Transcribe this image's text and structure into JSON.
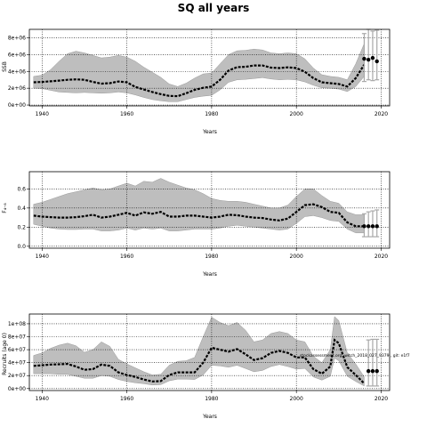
{
  "figure_title": "SQ all years",
  "colors": {
    "band": "#bebebe",
    "line": "#000000",
    "grid": "#000000",
    "err": "#a8a8a8"
  },
  "chart_data": [
    {
      "type": "line",
      "title": "",
      "xlabel": "Years",
      "ylabel": "SSB",
      "xlim": [
        1937,
        2022
      ],
      "ylim": [
        -100000,
        9000000
      ],
      "xticks": [
        1940,
        1960,
        1980,
        2000,
        2020
      ],
      "yticks": [
        0,
        2000000,
        4000000,
        6000000,
        8000000
      ],
      "ytick_labels": [
        "0e+00",
        "2e+06",
        "4e+06",
        "6e+06",
        "8e+06"
      ],
      "grid": true,
      "x": [
        1938,
        1940,
        1942,
        1944,
        1946,
        1948,
        1950,
        1952,
        1954,
        1956,
        1958,
        1960,
        1962,
        1964,
        1966,
        1968,
        1970,
        1972,
        1974,
        1976,
        1978,
        1980,
        1982,
        1984,
        1986,
        1988,
        1990,
        1992,
        1994,
        1996,
        1998,
        2000,
        2002,
        2004,
        2006,
        2008,
        2010,
        2012,
        2014,
        2016
      ],
      "y": [
        2700000,
        2750000,
        2820000,
        2900000,
        3000000,
        3050000,
        3000000,
        2750000,
        2550000,
        2600000,
        2800000,
        2700000,
        2150000,
        1850000,
        1550000,
        1300000,
        1080000,
        1050000,
        1400000,
        1800000,
        2050000,
        2200000,
        3000000,
        4100000,
        4500000,
        4550000,
        4700000,
        4700000,
        4450000,
        4400000,
        4480000,
        4400000,
        3950000,
        3200000,
        2700000,
        2600000,
        2500000,
        2200000,
        3200000,
        4800000
      ],
      "upper": [
        3400000,
        3550000,
        4200000,
        5200000,
        6100000,
        6400000,
        6200000,
        5900000,
        5600000,
        5700000,
        5900000,
        5700000,
        5200000,
        4500000,
        3900000,
        3300000,
        2500000,
        2200000,
        2600000,
        3200000,
        3700000,
        3800000,
        4900000,
        6000000,
        6450000,
        6500000,
        6650000,
        6550000,
        6200000,
        6100000,
        6200000,
        6100000,
        5500000,
        4400000,
        3600000,
        3400000,
        3300000,
        3000000,
        4900000,
        7300000
      ],
      "lower": [
        2000000,
        1950000,
        1750000,
        1550000,
        1500000,
        1450000,
        1500000,
        1450000,
        1400000,
        1450000,
        1550000,
        1450000,
        1200000,
        900000,
        650000,
        500000,
        400000,
        400000,
        650000,
        900000,
        1050000,
        1150000,
        1800000,
        2700000,
        3000000,
        3050000,
        3150000,
        3250000,
        3100000,
        3000000,
        3050000,
        3000000,
        2750000,
        2350000,
        2050000,
        2000000,
        1900000,
        1600000,
        2200000,
        3400000
      ],
      "projection_x": [
        2016,
        2017,
        2018,
        2019
      ],
      "projection_y": [
        5500000,
        5400000,
        5600000,
        5200000
      ],
      "projection_err": [
        [
          2800000,
          8500000
        ],
        [
          3000000,
          9000000
        ],
        [
          2900000,
          8800000
        ],
        [
          3000000,
          8900000
        ]
      ]
    },
    {
      "type": "line",
      "title": "",
      "xlabel": "Years",
      "ylabel": "F₄₋₈",
      "xlim": [
        1937,
        2022
      ],
      "ylim": [
        -0.02,
        0.78
      ],
      "xticks": [
        1940,
        1960,
        1980,
        2000,
        2020
      ],
      "yticks": [
        0.0,
        0.2,
        0.4,
        0.6
      ],
      "ytick_labels": [
        "0.0",
        "0.2",
        "0.4",
        "0.6"
      ],
      "grid": true,
      "x": [
        1938,
        1940,
        1942,
        1944,
        1946,
        1948,
        1950,
        1952,
        1954,
        1956,
        1958,
        1960,
        1962,
        1964,
        1966,
        1968,
        1970,
        1972,
        1974,
        1976,
        1978,
        1980,
        1982,
        1984,
        1986,
        1988,
        1990,
        1992,
        1994,
        1996,
        1998,
        2000,
        2002,
        2004,
        2006,
        2008,
        2010,
        2012,
        2014,
        2016
      ],
      "y": [
        0.32,
        0.31,
        0.305,
        0.3,
        0.3,
        0.305,
        0.315,
        0.33,
        0.3,
        0.31,
        0.33,
        0.35,
        0.32,
        0.355,
        0.34,
        0.36,
        0.31,
        0.31,
        0.32,
        0.32,
        0.31,
        0.3,
        0.31,
        0.33,
        0.325,
        0.31,
        0.3,
        0.295,
        0.28,
        0.27,
        0.29,
        0.36,
        0.43,
        0.44,
        0.41,
        0.36,
        0.35,
        0.25,
        0.21,
        0.21
      ],
      "upper": [
        0.44,
        0.46,
        0.49,
        0.52,
        0.55,
        0.57,
        0.59,
        0.61,
        0.59,
        0.6,
        0.63,
        0.66,
        0.63,
        0.68,
        0.67,
        0.71,
        0.67,
        0.64,
        0.61,
        0.59,
        0.55,
        0.5,
        0.48,
        0.47,
        0.47,
        0.46,
        0.44,
        0.42,
        0.4,
        0.4,
        0.43,
        0.52,
        0.6,
        0.6,
        0.53,
        0.47,
        0.45,
        0.36,
        0.33,
        0.33
      ],
      "lower": [
        0.23,
        0.21,
        0.19,
        0.18,
        0.175,
        0.175,
        0.18,
        0.18,
        0.16,
        0.16,
        0.17,
        0.19,
        0.17,
        0.19,
        0.18,
        0.19,
        0.16,
        0.16,
        0.17,
        0.18,
        0.18,
        0.18,
        0.19,
        0.21,
        0.22,
        0.21,
        0.2,
        0.19,
        0.18,
        0.17,
        0.18,
        0.24,
        0.31,
        0.32,
        0.3,
        0.27,
        0.26,
        0.18,
        0.14,
        0.14
      ],
      "projection_x": [
        2016,
        2017,
        2018,
        2019
      ],
      "projection_y": [
        0.21,
        0.21,
        0.21,
        0.21
      ],
      "projection_err": [
        [
          0.1,
          0.34
        ],
        [
          0.1,
          0.36
        ],
        [
          0.1,
          0.37
        ],
        [
          0.1,
          0.38
        ]
      ]
    },
    {
      "type": "line",
      "title": "",
      "xlabel": "Years",
      "ylabel": "Recruits (age 0)",
      "xlim": [
        1937,
        2022
      ],
      "ylim": [
        -3000000,
        115000000
      ],
      "xticks": [
        1940,
        1960,
        1980,
        2000,
        2020
      ],
      "yticks": [
        0,
        20000000,
        40000000,
        60000000,
        80000000,
        100000000
      ],
      "ytick_labels": [
        "0e+00",
        "2e+07",
        "4e+07",
        "6e+07",
        "8e+07",
        "1e+08"
      ],
      "grid": true,
      "annotation": "stockassessment.org, witch_2018_027_9379 , git: e1f7",
      "x": [
        1938,
        1940,
        1942,
        1944,
        1946,
        1948,
        1950,
        1952,
        1954,
        1956,
        1958,
        1960,
        1962,
        1964,
        1966,
        1968,
        1970,
        1972,
        1974,
        1976,
        1978,
        1980,
        1982,
        1984,
        1986,
        1988,
        1990,
        1992,
        1994,
        1996,
        1998,
        2000,
        2002,
        2004,
        2006,
        2008,
        2009,
        2010,
        2012,
        2014,
        2016
      ],
      "y": [
        35000000,
        36000000,
        37000000,
        37500000,
        38000000,
        34000000,
        29000000,
        30000000,
        37000000,
        35000000,
        25000000,
        21000000,
        18000000,
        14000000,
        11000000,
        11500000,
        21000000,
        25000000,
        25000000,
        25000000,
        40000000,
        63000000,
        60000000,
        57000000,
        61000000,
        53000000,
        44000000,
        47000000,
        55000000,
        58000000,
        55000000,
        48000000,
        48000000,
        30000000,
        23000000,
        34000000,
        75000000,
        70000000,
        33000000,
        21000000,
        8000000
      ],
      "upper": [
        51000000,
        55000000,
        62000000,
        67000000,
        70000000,
        66000000,
        56000000,
        60000000,
        72000000,
        65000000,
        45000000,
        38000000,
        32000000,
        26000000,
        21000000,
        22000000,
        36000000,
        42000000,
        43000000,
        48000000,
        80000000,
        110000000,
        102000000,
        97000000,
        102000000,
        90000000,
        72000000,
        75000000,
        85000000,
        88000000,
        85000000,
        75000000,
        72000000,
        50000000,
        40000000,
        60000000,
        111000000,
        105000000,
        55000000,
        38000000,
        18000000
      ],
      "lower": [
        23000000,
        23000000,
        23000000,
        22000000,
        22000000,
        19000000,
        16000000,
        16000000,
        20000000,
        19000000,
        14000000,
        11000000,
        9000000,
        7500000,
        5500000,
        6000000,
        12000000,
        14500000,
        14500000,
        14000000,
        21000000,
        36000000,
        35000000,
        33000000,
        36000000,
        31000000,
        26000000,
        28000000,
        34000000,
        37000000,
        34000000,
        30000000,
        31000000,
        18000000,
        13000000,
        19000000,
        47000000,
        43000000,
        19000000,
        11000000,
        4000000
      ],
      "projection_x": [
        2017,
        2018,
        2019
      ],
      "projection_y": [
        27000000,
        27000000,
        27000000
      ],
      "projection_err": [
        [
          4000000,
          75000000
        ],
        [
          4000000,
          76000000
        ],
        [
          4000000,
          76000000
        ]
      ]
    }
  ]
}
